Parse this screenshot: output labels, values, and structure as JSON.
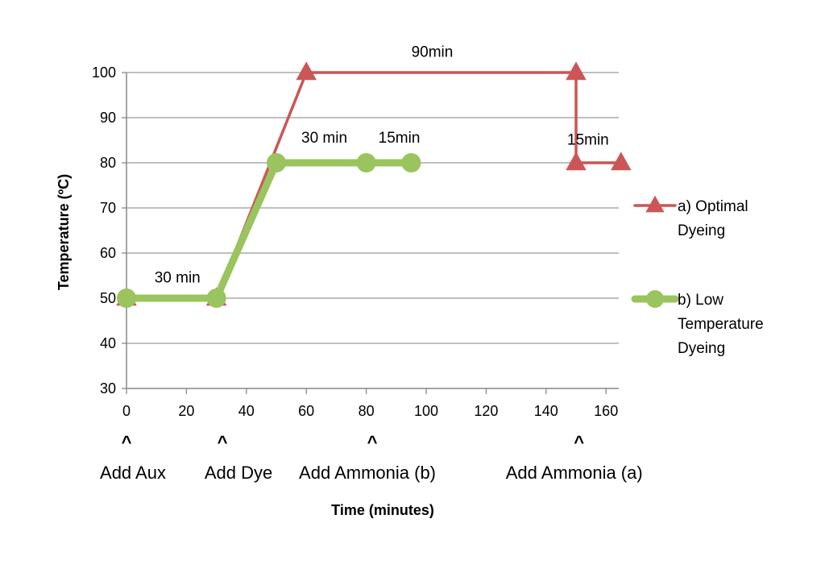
{
  "chart_data": {
    "type": "line",
    "xlabel": "Time (minutes)",
    "ylabel": "Temperature (ºC)",
    "xlim": [
      0,
      165
    ],
    "ylim": [
      30,
      100
    ],
    "x_ticks": [
      0,
      20,
      40,
      60,
      80,
      100,
      120,
      140,
      160
    ],
    "y_ticks": [
      30,
      40,
      50,
      60,
      70,
      80,
      90,
      100
    ],
    "grid": "horizontal",
    "legend_position": "right",
    "series": [
      {
        "name_lines": [
          "a) Optimal",
          "Dyeing"
        ],
        "color": "#cc5555",
        "marker": "triangle",
        "points": [
          [
            0,
            50
          ],
          [
            30,
            50
          ],
          [
            60,
            100
          ],
          [
            150,
            100
          ],
          [
            150,
            80
          ],
          [
            165,
            80
          ]
        ]
      },
      {
        "name_lines": [
          "b) Low",
          "Temperature",
          "Dyeing"
        ],
        "color": "#99c45e",
        "marker": "circle",
        "points": [
          [
            0,
            50
          ],
          [
            30,
            50
          ],
          [
            50,
            80
          ],
          [
            80,
            80
          ],
          [
            95,
            80
          ]
        ]
      }
    ],
    "annotations": [
      {
        "text": "30 min",
        "x": 17,
        "y": 53.5
      },
      {
        "text": "30 min",
        "x": 66,
        "y": 84.5
      },
      {
        "text": "15min",
        "x": 91,
        "y": 84.5
      },
      {
        "text": "90min",
        "x": 102,
        "y": 103.5
      },
      {
        "text": "15min",
        "x": 154,
        "y": 84.0
      }
    ],
    "markers": [
      {
        "caret": "^",
        "label": "Add Aux",
        "x": 0
      },
      {
        "caret": "^",
        "label": "Add Dye",
        "x": 32
      },
      {
        "caret": "^",
        "label": "Add Ammonia (b)",
        "x": 82
      },
      {
        "caret": "^",
        "label": "Add Ammonia (a)",
        "x": 151
      }
    ]
  }
}
